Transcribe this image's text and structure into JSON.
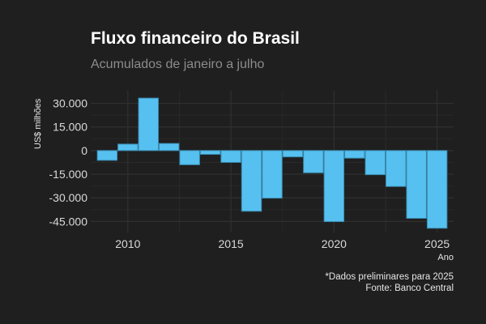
{
  "chart_data": {
    "type": "bar",
    "title": "Fluxo financeiro do Brasil",
    "subtitle": "Acumulados de janeiro a julho",
    "xlabel": "Ano",
    "ylabel": "US$ milhões",
    "x": [
      2009,
      2010,
      2011,
      2012,
      2013,
      2014,
      2015,
      2016,
      2017,
      2018,
      2019,
      2020,
      2021,
      2022,
      2023,
      2024,
      2025
    ],
    "values": [
      -6200,
      4100,
      33300,
      4500,
      -9000,
      -2400,
      -7500,
      -38500,
      -30200,
      -4000,
      -14100,
      -45100,
      -4800,
      -15300,
      -22800,
      -43000,
      -49300
    ],
    "ylim": [
      -52000,
      38000
    ],
    "xlim": [
      2008.2,
      2025.8
    ],
    "yticks": [
      30000,
      15000,
      0,
      -15000,
      -30000,
      -45000
    ],
    "ytick_labels": [
      "30.000",
      "15.000",
      "0",
      "-15.000",
      "-30.000",
      "-45.000"
    ],
    "xticks": [
      2010,
      2015,
      2020,
      2025
    ],
    "xtick_labels": [
      "2010",
      "2015",
      "2020",
      "2025"
    ],
    "grid": true,
    "bar_color": "#56c1f0",
    "background": "#1f1f1f",
    "caption": [
      "*Dados preliminares para 2025",
      "Fonte: Banco Central"
    ]
  }
}
